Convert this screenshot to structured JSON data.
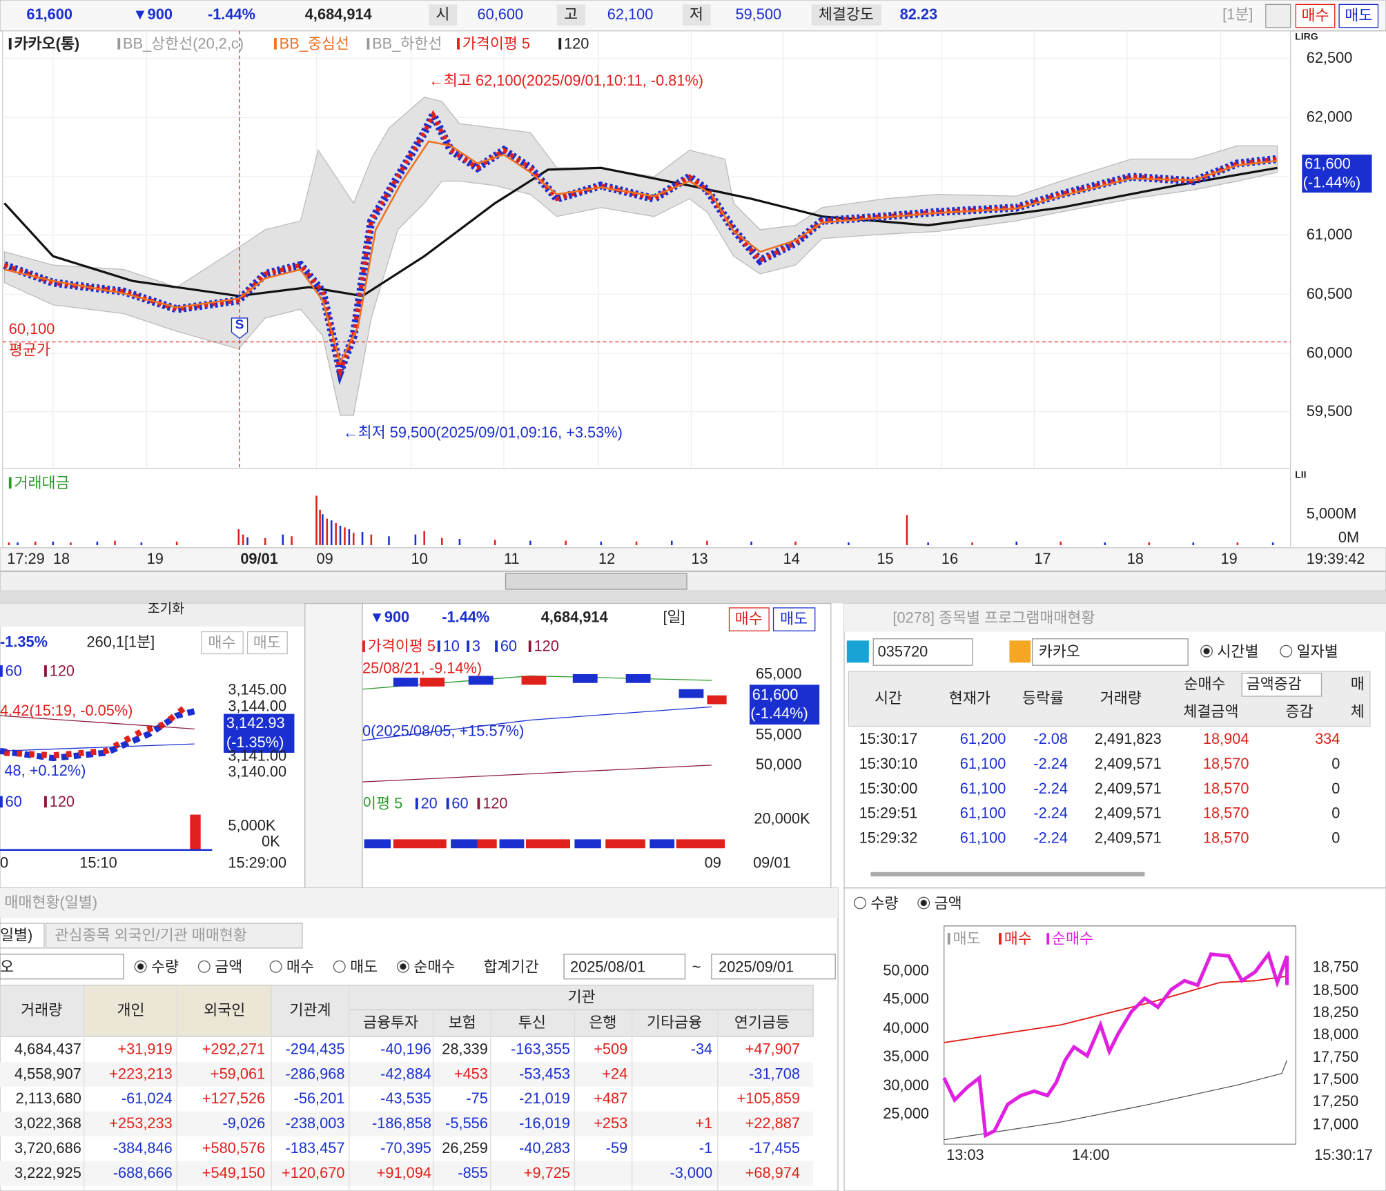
{
  "top_bar": {
    "price": "61,600",
    "change": "▼900",
    "rate": "-1.44%",
    "volume": "4,684,914",
    "open_label": "시",
    "open": "60,600",
    "high_label": "고",
    "high": "62,100",
    "low_label": "저",
    "low": "59,500",
    "strength_label": "체결강도",
    "strength": "82.23",
    "interval": "[1분]",
    "buy": "매수",
    "sell": "매도"
  },
  "main_chart": {
    "legend": [
      "카카오(통)",
      "BB_상한선(20,2,c)",
      "BB_중심선",
      "BB_하한선",
      "가격이평 5",
      "120"
    ],
    "corner": "LIRG",
    "yticks": [
      "62,500",
      "62,000",
      "61,000",
      "60,500",
      "60,000",
      "59,500"
    ],
    "price_tag": [
      "61,600",
      "(-1.44%)"
    ],
    "high_note": "←최고 62,100(2025/09/01,10:11, -0.81%)",
    "low_note": "←최저 59,500(2025/09/01,09:16, +3.53%)",
    "avg_value": "60,100",
    "avg_label": "평균가",
    "marker": "S",
    "volume_title": "거래대금",
    "volume_corner": "LII",
    "volume_ticks": [
      "5,000M",
      "0M"
    ],
    "xticks": [
      "17:29",
      "18",
      "19",
      "09/01",
      "09",
      "10",
      "11",
      "12",
      "13",
      "14",
      "15",
      "16",
      "17",
      "18",
      "19",
      "19:39:42"
    ]
  },
  "left_panel": {
    "toolbar": "조기화",
    "rate": "-1.35%",
    "info": "260,1[1분]",
    "buy": "매수",
    "sell": "매도",
    "legend": [
      "60",
      "120"
    ],
    "yticks": [
      "3,145.00",
      "3,144.00",
      "3,141.00",
      "3,140.00"
    ],
    "price_tag": [
      "3,142.93",
      "(-1.35%)"
    ],
    "high_note": "4.42(15:19, -0.05%)",
    "low_note": "48, +0.12%)",
    "volume_legend": [
      "60",
      "120"
    ],
    "volume_ticks": [
      "5,000K",
      "0K"
    ],
    "xticks": [
      "0",
      "15:10",
      "15:29:00"
    ]
  },
  "middle_panel": {
    "change": "▼900",
    "rate": "-1.44%",
    "volume": "4,684,914",
    "interval": "[일]",
    "buy": "매수",
    "sell": "매도",
    "legend": [
      "가격이평 5",
      "10",
      "3",
      "60",
      "120"
    ],
    "high_note": "25/08/21, -9.14%)",
    "low_note": "0(2025/08/05, +15.57%)",
    "yticks": [
      "65,000",
      "55,000",
      "50,000"
    ],
    "price_tag": [
      "61,600",
      "(-1.44%)"
    ],
    "volume_legend": [
      "이평 5",
      "20",
      "60",
      "120"
    ],
    "volume_ticks": [
      "20,000K"
    ],
    "xticks": [
      "09",
      "09/01"
    ]
  },
  "program_panel": {
    "title": "[0278] 종목별 프로그램매매현황",
    "code": "035720",
    "name": "카카오",
    "radios": [
      "시간별",
      "일자별"
    ],
    "headers": {
      "time": "시간",
      "price": "현재가",
      "rate": "등락률",
      "volume": "거래량",
      "net": "순매수",
      "mode": "금액증감",
      "amount": "체결금액",
      "delta": "증감",
      "extra": "매",
      "extra2": "체"
    },
    "rows": [
      [
        "15:30:17",
        "61,200",
        "-2.08",
        "2,491,823",
        "18,904",
        "334"
      ],
      [
        "15:30:10",
        "61,100",
        "-2.24",
        "2,409,571",
        "18,570",
        "0"
      ],
      [
        "15:30:00",
        "61,100",
        "-2.24",
        "2,409,571",
        "18,570",
        "0"
      ],
      [
        "15:29:51",
        "61,100",
        "-2.24",
        "2,409,571",
        "18,570",
        "0"
      ],
      [
        "15:29:32",
        "61,100",
        "-2.24",
        "2,409,571",
        "18,570",
        "0"
      ]
    ],
    "chart_radios": [
      "수량",
      "금액"
    ],
    "legend": [
      "매도",
      "매수",
      "순매수"
    ],
    "left_ticks": [
      "50,000",
      "45,000",
      "40,000",
      "35,000",
      "30,000",
      "25,000"
    ],
    "right_ticks": [
      "18,750",
      "18,500",
      "18,250",
      "18,000",
      "17,750",
      "17,500",
      "17,250",
      "17,000"
    ],
    "xticks": [
      "13:03",
      "14:00",
      "15:30:17"
    ]
  },
  "investor_panel": {
    "title": "매매현황(일별)",
    "tabs": [
      "일별)",
      "관심종목 외국인/기관 매매현황"
    ],
    "stock": "오",
    "unit_radios": [
      "수량",
      "금액"
    ],
    "side_radios": [
      "매수",
      "매도",
      "순매수"
    ],
    "period_label": "합계기간",
    "from": "2025/08/01",
    "tilde": "~",
    "to": "2025/09/01",
    "headers": [
      "거래량",
      "개인",
      "외국인",
      "기관계"
    ],
    "group": "기관",
    "subheaders": [
      "금융투자",
      "보험",
      "투신",
      "은행",
      "기타금융",
      "연기금등"
    ],
    "rows": [
      [
        "4,684,437",
        "+31,919",
        "+292,271",
        "-294,435",
        "-40,196",
        "28,339",
        "-163,355",
        "+509",
        "-34",
        "+47,907"
      ],
      [
        "4,558,907",
        "+223,213",
        "+59,061",
        "-286,968",
        "-42,884",
        "+453",
        "-53,453",
        "+24",
        null,
        "-31,708"
      ],
      [
        "2,113,680",
        "-61,024",
        "+127,526",
        "-56,201",
        "-43,535",
        "-75",
        "-21,019",
        "+487",
        null,
        "+105,859"
      ],
      [
        "3,022,368",
        "+253,233",
        "-9,026",
        "-238,003",
        "-186,858",
        "-5,556",
        "-16,019",
        "+253",
        "+1",
        "+22,887"
      ],
      [
        "3,720,686",
        "-384,846",
        "+580,576",
        "-183,457",
        "-70,395",
        "26,259",
        "-40,283",
        "-59",
        "-1",
        "-17,455"
      ],
      [
        "3,222,925",
        "-688,666",
        "+549,150",
        "+120,670",
        "+91,094",
        "-855",
        "+9,725",
        null,
        "-3,000",
        "+68,974"
      ]
    ]
  }
}
